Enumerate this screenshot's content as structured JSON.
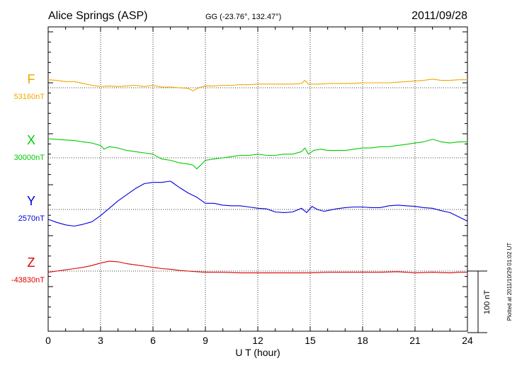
{
  "header": {
    "station": "Alice Springs (ASP)",
    "coords": "GG (-23.76°, 132.47°)",
    "date": "2011/09/28"
  },
  "footer": {
    "plotted_note": "Plotted at 2011/10/29 01:02 UT",
    "scale_label": "100 nT"
  },
  "chart_data": {
    "type": "line",
    "xlabel": "U T (hour)",
    "xlim": [
      0,
      24
    ],
    "xticks": [
      "0",
      "3",
      "6",
      "9",
      "12",
      "15",
      "18",
      "21",
      "24"
    ],
    "scale_nT": 100,
    "series": [
      {
        "name": "F",
        "baseline_label": "53160nT",
        "color": "#f0a800",
        "baseline_nT": 53160,
        "x": [
          0,
          0.5,
          1,
          1.5,
          2,
          2.5,
          3,
          3.5,
          4,
          4.5,
          5,
          5.5,
          6,
          6.5,
          7,
          7.5,
          8,
          8.3,
          8.6,
          9,
          9.5,
          10,
          10.5,
          11,
          11.5,
          12,
          12.5,
          13,
          13.5,
          14,
          14.5,
          14.7,
          14.9,
          15.2,
          15.6,
          16,
          16.5,
          17,
          17.5,
          18,
          18.5,
          19,
          19.5,
          20,
          20.5,
          21,
          21.5,
          22,
          22.5,
          23,
          23.5,
          24
        ],
        "values": [
          53173,
          53172,
          53170,
          53170,
          53167,
          53164,
          53162,
          53163,
          53162,
          53163,
          53164,
          53162,
          53164,
          53161,
          53161,
          53160,
          53159,
          53155,
          53160,
          53163,
          53163,
          53164,
          53164,
          53165,
          53165,
          53166,
          53166,
          53166,
          53166,
          53166,
          53167,
          53172,
          53166,
          53166,
          53166,
          53167,
          53167,
          53167,
          53167,
          53168,
          53168,
          53168,
          53168,
          53169,
          53170,
          53171,
          53172,
          53174,
          53172,
          53172,
          53173,
          53173
        ]
      },
      {
        "name": "X",
        "baseline_label": "30000nT",
        "color": "#00cc00",
        "baseline_nT": 30000,
        "x": [
          0,
          0.5,
          1,
          1.5,
          2,
          2.5,
          3,
          3.2,
          3.5,
          4,
          4.5,
          5,
          5.5,
          6,
          6.5,
          7,
          7.5,
          8,
          8.3,
          8.5,
          8.8,
          9,
          9.5,
          10,
          10.5,
          11,
          11.5,
          12,
          12.5,
          13,
          13.5,
          14,
          14.5,
          14.7,
          14.9,
          15.2,
          15.6,
          16,
          16.5,
          17,
          17.5,
          18,
          18.5,
          19,
          19.5,
          20,
          20.5,
          21,
          21.5,
          22,
          22.5,
          23,
          23.5,
          24
        ],
        "values": [
          30031,
          30030,
          30029,
          30028,
          30026,
          30024,
          30020,
          30014,
          30018,
          30016,
          30012,
          30010,
          30008,
          30006,
          29998,
          29996,
          29992,
          29990,
          29988,
          29982,
          29990,
          29996,
          29998,
          30000,
          30002,
          30004,
          30004,
          30006,
          30004,
          30004,
          30006,
          30006,
          30010,
          30016,
          30006,
          30012,
          30014,
          30012,
          30012,
          30012,
          30014,
          30016,
          30016,
          30018,
          30018,
          30020,
          30022,
          30024,
          30026,
          30030,
          30026,
          30024,
          30026,
          30026
        ]
      },
      {
        "name": "Y",
        "baseline_label": "2570nT",
        "color": "#0000dd",
        "baseline_nT": 2570,
        "x": [
          0,
          0.5,
          1,
          1.5,
          2,
          2.5,
          3,
          3.5,
          4,
          4.5,
          5,
          5.5,
          6,
          6.5,
          7,
          7.5,
          8,
          8.5,
          9,
          9.5,
          10,
          10.5,
          11,
          11.5,
          12,
          12.5,
          13,
          13.5,
          14,
          14.5,
          14.8,
          15.1,
          15.4,
          15.8,
          16.5,
          17,
          17.5,
          18,
          18.5,
          19,
          19.5,
          20,
          20.5,
          21,
          21.5,
          22,
          22.5,
          23,
          23.5,
          24
        ],
        "values": [
          2554,
          2549,
          2545,
          2543,
          2546,
          2550,
          2560,
          2572,
          2584,
          2594,
          2604,
          2612,
          2614,
          2614,
          2616,
          2606,
          2597,
          2590,
          2580,
          2580,
          2577,
          2576,
          2576,
          2574,
          2572,
          2571,
          2566,
          2565,
          2566,
          2572,
          2565,
          2575,
          2570,
          2567,
          2571,
          2573,
          2574,
          2574,
          2573,
          2573,
          2576,
          2577,
          2576,
          2575,
          2573,
          2572,
          2568,
          2565,
          2558,
          2551
        ]
      },
      {
        "name": "Z",
        "baseline_label": "-43830nT",
        "color": "#dd0000",
        "baseline_nT": -43830,
        "x": [
          0,
          0.5,
          1,
          1.5,
          2,
          2.5,
          3,
          3.5,
          4,
          4.5,
          5,
          5.5,
          6,
          6.5,
          7,
          7.5,
          8,
          8.5,
          9,
          10,
          11,
          12,
          13,
          14,
          15,
          16,
          17,
          18,
          19,
          20,
          20.5,
          21,
          22,
          23,
          23.5,
          24
        ],
        "values": [
          -43832,
          -43830,
          -43828,
          -43826,
          -43824,
          -43821,
          -43817,
          -43814,
          -43815,
          -43818,
          -43820,
          -43822,
          -43824,
          -43826,
          -43827,
          -43829,
          -43830,
          -43831,
          -43832,
          -43832,
          -43833,
          -43833,
          -43833,
          -43833,
          -43833,
          -43832,
          -43832,
          -43832,
          -43832,
          -43831,
          -43832,
          -43833,
          -43832,
          -43833,
          -43832,
          -43832
        ]
      }
    ]
  }
}
